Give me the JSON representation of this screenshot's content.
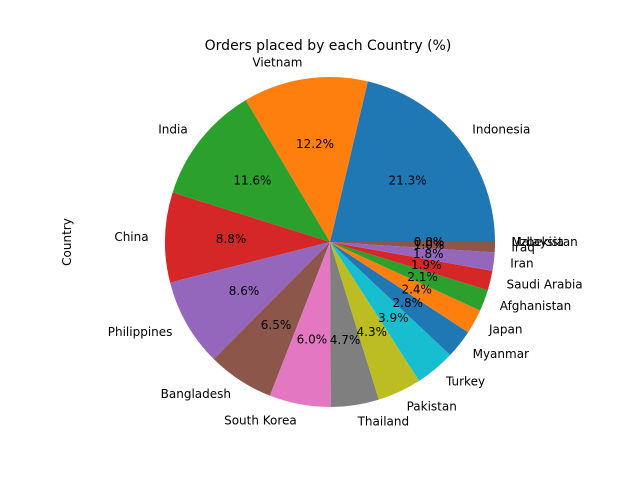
{
  "chart_data": {
    "type": "pie",
    "title": "Orders placed by each Country (%)",
    "ylabel": "Country",
    "start_angle_deg": 0,
    "direction": "counterclockwise",
    "categories": [
      "Indonesia",
      "Vietnam",
      "India",
      "China",
      "Philippines",
      "Bangladesh",
      "South Korea",
      "Thailand",
      "Pakistan",
      "Turkey",
      "Myanmar",
      "Japan",
      "Afghanistan",
      "Saudi Arabia",
      "Iran",
      "Iraq",
      "Malaysia",
      "Uzbekistan"
    ],
    "values": [
      21.3,
      12.2,
      11.6,
      8.8,
      8.6,
      6.5,
      6.0,
      4.7,
      4.3,
      3.9,
      2.8,
      2.4,
      2.1,
      1.9,
      1.8,
      1.0,
      0.0,
      0.0
    ],
    "labels_pct": [
      "21.3%",
      "12.2%",
      "11.6%",
      "8.8%",
      "8.6%",
      "6.5%",
      "6.0%",
      "4.7%",
      "4.3%",
      "3.9%",
      "2.8%",
      "2.4%",
      "2.1%",
      "1.9%",
      "1.8%",
      "1.0%",
      "0.0%",
      "0.0%"
    ],
    "colors": [
      "#1f77b4",
      "#ff7f0e",
      "#2ca02c",
      "#d62728",
      "#9467bd",
      "#8c564b",
      "#e377c2",
      "#7f7f7f",
      "#bcbd22",
      "#17becf",
      "#1f77b4",
      "#ff7f0e",
      "#2ca02c",
      "#d62728",
      "#9467bd",
      "#8c564b",
      "#e377c2",
      "#7f7f7f"
    ]
  }
}
